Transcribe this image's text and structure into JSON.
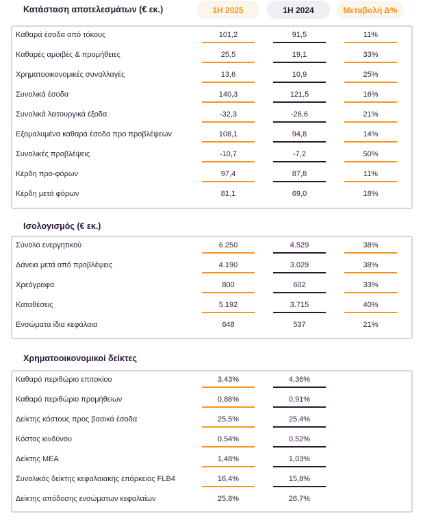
{
  "sections": [
    {
      "title": "Κατάσταση αποτελεσμάτων (€ εκ.)",
      "rows": [
        {
          "label": "Καθαρά έσοδα από τόκους",
          "v2025": "101,2",
          "v2024": "91,5",
          "change": "11%"
        },
        {
          "label": "Καθαρές αμοιβές & προμήθειες",
          "v2025": "25,5",
          "v2024": "19,1",
          "change": "33%"
        },
        {
          "label": "Χρηματοοικονομικές συναλλαγές",
          "v2025": "13,6",
          "v2024": "10,9",
          "change": "25%"
        },
        {
          "label": "Συνολικά έσοδα",
          "v2025": "140,3",
          "v2024": "121,5",
          "change": "16%"
        },
        {
          "label": "Συνολικά λειτουργικά έξοδα",
          "v2025": "-32,3",
          "v2024": "-26,6",
          "change": "21%"
        },
        {
          "label": "Εξομαλυμένα καθαρά έσοδα προ προβλέψεων",
          "v2025": "108,1",
          "v2024": "94,8",
          "change": "14%"
        },
        {
          "label": "Συνολικές προβλέψεις",
          "v2025": "-10,7",
          "v2024": "-7,2",
          "change": "50%"
        },
        {
          "label": "Κέρδη προ-φόρων",
          "v2025": "97,4",
          "v2024": "87,8",
          "change": "11%"
        },
        {
          "label": "Κέρδη μετά φόρων",
          "v2025": "81,1",
          "v2024": "69,0",
          "change": "18%"
        }
      ]
    },
    {
      "title": "Ισολογισμός (€ εκ.)",
      "rows": [
        {
          "label": "Σύνολο ενεργητικού",
          "v2025": "6.250",
          "v2024": "4.529",
          "change": "38%"
        },
        {
          "label": "Δάνεια μετά από προβλέψεις",
          "v2025": "4.190",
          "v2024": "3.029",
          "change": "38%"
        },
        {
          "label": "Χρεόγραφα",
          "v2025": "800",
          "v2024": "602",
          "change": "33%"
        },
        {
          "label": "Καταθέσεις",
          "v2025": "5.192",
          "v2024": "3.715",
          "change": "40%"
        },
        {
          "label": "Ενσώματα ίδια κεφάλαια",
          "v2025": "648",
          "v2024": "537",
          "change": "21%"
        }
      ]
    },
    {
      "title": "Χρηματοοικονομικοί δείκτες",
      "rows": [
        {
          "label": "Καθαρό περιθώριο επιτοκίου",
          "v2025": "3,43%",
          "v2024": "4,36%"
        },
        {
          "label": "Καθαρό περιθώριο προμήθειων",
          "v2025": "0,86%",
          "v2024": "0,91%"
        },
        {
          "label": "Δείκτης κόστους προς βασικά έσοδα",
          "v2025": "25,5%",
          "v2024": "25,4%"
        },
        {
          "label": "Κόστος κινδύνου",
          "v2025": "0,54%",
          "v2024": "0,52%"
        },
        {
          "label": "Δείκτης ΜΕΑ",
          "v2025": "1,48%",
          "v2024": "1,03%"
        },
        {
          "label": "Συνολικός δείκτης κεφαλαιακής επάρκειας FLB4",
          "v2025": "16,4%",
          "v2024": "15,8%"
        },
        {
          "label": "Δείκτης απόδοσης ενσώματων κεφαλαίων",
          "v2025": "25,8%",
          "v2024": "26,7%"
        }
      ]
    }
  ],
  "headers": {
    "col_2025": "1H 2025",
    "col_2024": "1H 2024",
    "col_change": "Μεταβολή Δ%"
  },
  "colors": {
    "accent": "#f7941d",
    "dark": "#2a1633"
  }
}
